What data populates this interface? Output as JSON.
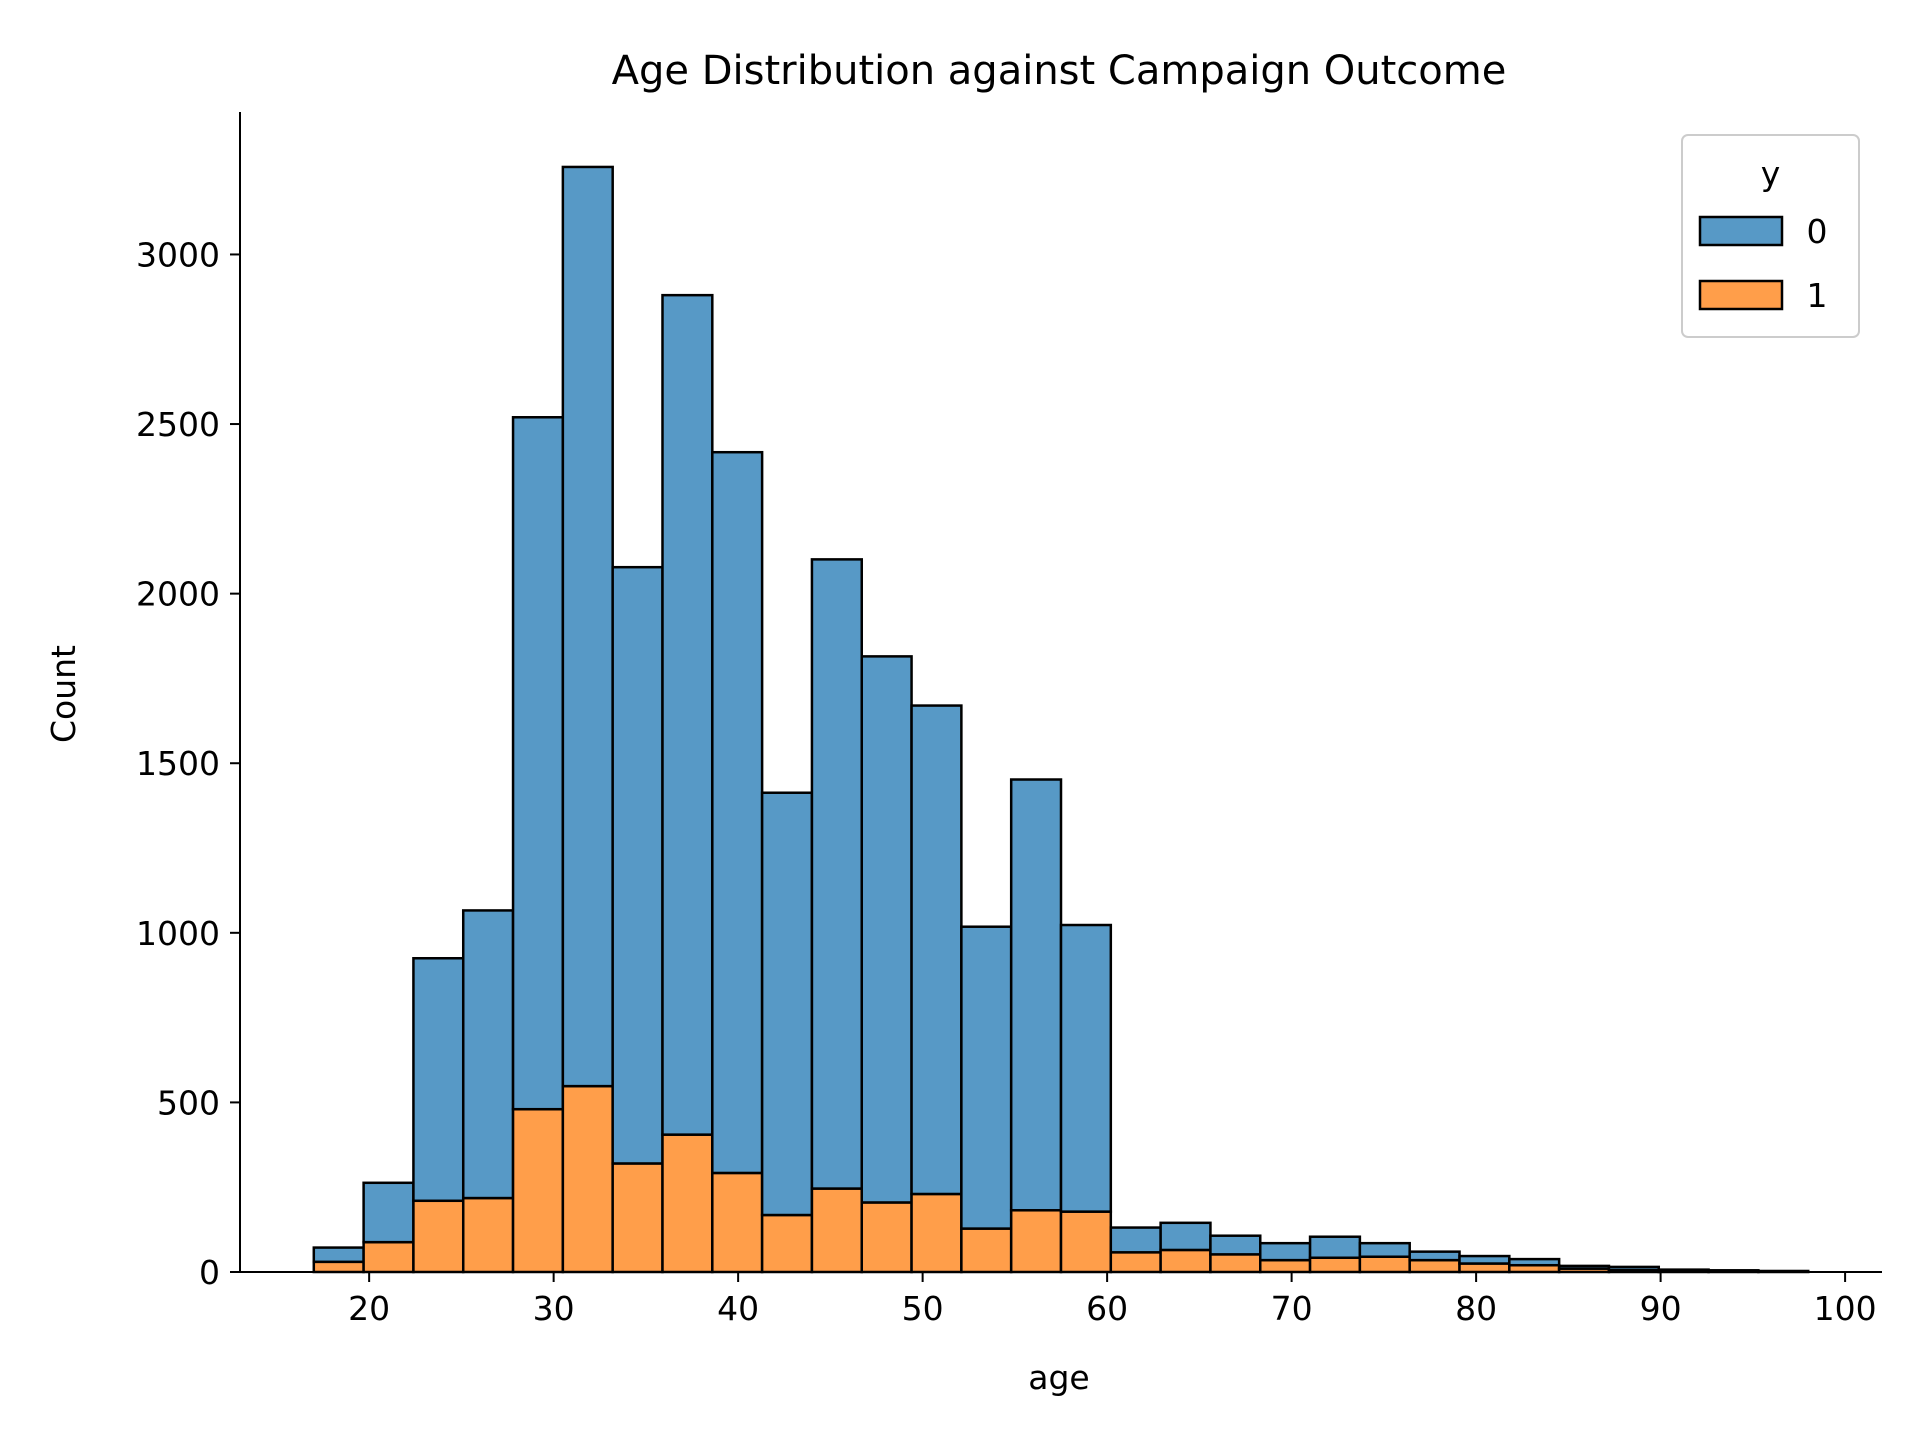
{
  "chart_data": {
    "type": "bar",
    "title": "Age Distribution against Campaign Outcome",
    "xlabel": "age",
    "ylabel": "Count",
    "xlim": [
      13,
      102
    ],
    "ylim": [
      0,
      3420
    ],
    "x_ticks": [
      20,
      30,
      40,
      50,
      60,
      70,
      80,
      90,
      100
    ],
    "y_ticks": [
      0,
      500,
      1000,
      1500,
      2000,
      2500,
      3000
    ],
    "grid": false,
    "stacked": true,
    "legend": {
      "title": "y",
      "placement": "top-right"
    },
    "bin_edges": [
      17,
      19.7,
      22.4,
      25.1,
      27.8,
      30.5,
      33.2,
      35.9,
      38.6,
      41.3,
      44.0,
      46.7,
      49.4,
      52.1,
      54.8,
      57.5,
      60.2,
      62.9,
      65.6,
      68.3,
      71.0,
      73.7,
      76.4,
      79.1,
      81.8,
      84.5,
      87.2,
      89.9,
      92.6,
      95.3,
      98.0
    ],
    "series": [
      {
        "name": "0",
        "color": "#5799c6",
        "values": [
          42,
          175,
          715,
          848,
          2040,
          2710,
          1758,
          2475,
          2125,
          1245,
          1855,
          1610,
          1440,
          890,
          1270,
          845,
          73,
          80,
          55,
          50,
          62,
          40,
          25,
          22,
          18,
          8,
          9,
          4,
          3,
          2
        ]
      },
      {
        "name": "1",
        "color": "#ff9e4a",
        "values": [
          30,
          88,
          210,
          218,
          480,
          548,
          320,
          405,
          292,
          168,
          246,
          205,
          230,
          128,
          182,
          178,
          58,
          65,
          52,
          35,
          42,
          45,
          35,
          25,
          20,
          10,
          6,
          3,
          2,
          1
        ]
      }
    ]
  }
}
